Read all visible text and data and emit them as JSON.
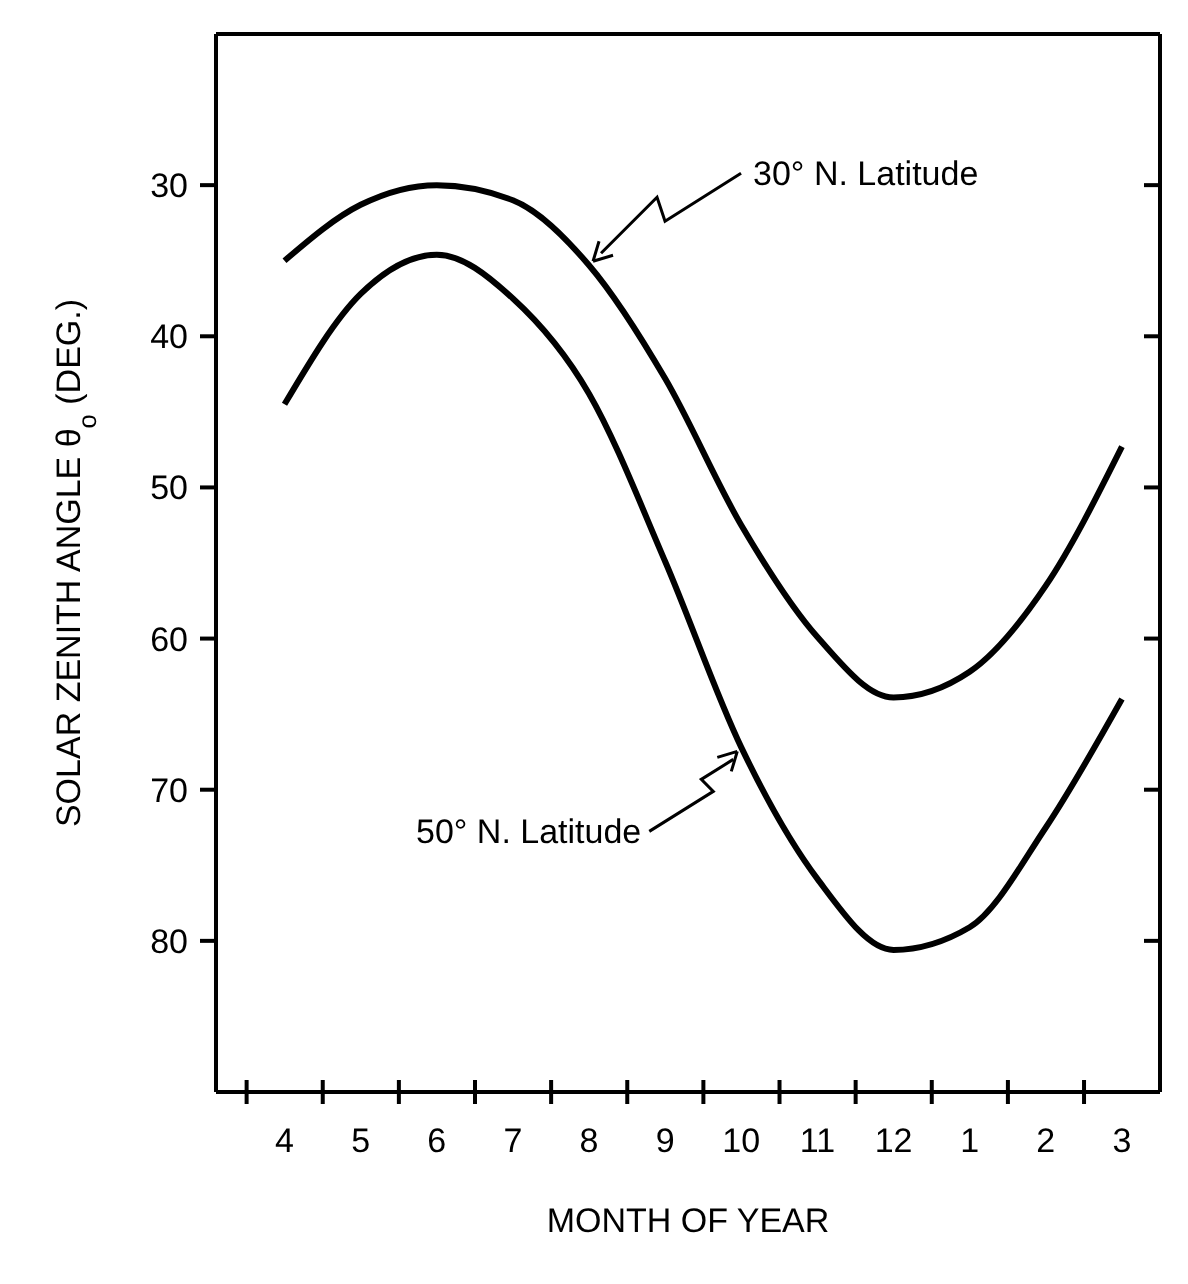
{
  "chart_data": {
    "type": "line",
    "xlabel": "MONTH OF YEAR",
    "ylabel": "SOLAR ZENITH ANGLE θ$_{o}$ (DEG.)",
    "categories": [
      "4",
      "5",
      "6",
      "7",
      "8",
      "9",
      "10",
      "11",
      "12",
      "1",
      "2",
      "3"
    ],
    "ylim": [
      90,
      20
    ],
    "yticks": [
      30,
      40,
      50,
      60,
      70,
      80
    ],
    "marker": "none",
    "line_style": "solid",
    "series": [
      {
        "color": "#000000",
        "values": [
          35.0,
          31.3,
          30.0,
          31.0,
          35.3,
          42.8,
          52.5,
          59.9,
          63.9,
          62.2,
          56.5,
          47.3
        ]
      },
      {
        "color": "#000000",
        "values": [
          44.5,
          37.2,
          34.6,
          37.5,
          43.8,
          54.9,
          67.2,
          75.9,
          80.6,
          79.1,
          72.5,
          64.0
        ]
      }
    ],
    "annotations": [
      {
        "text": "30° N. Latitude",
        "x": "8",
        "y": 35.3
      },
      {
        "text": "50° N. Latitude",
        "x": "10",
        "y": 67.2
      }
    ]
  }
}
